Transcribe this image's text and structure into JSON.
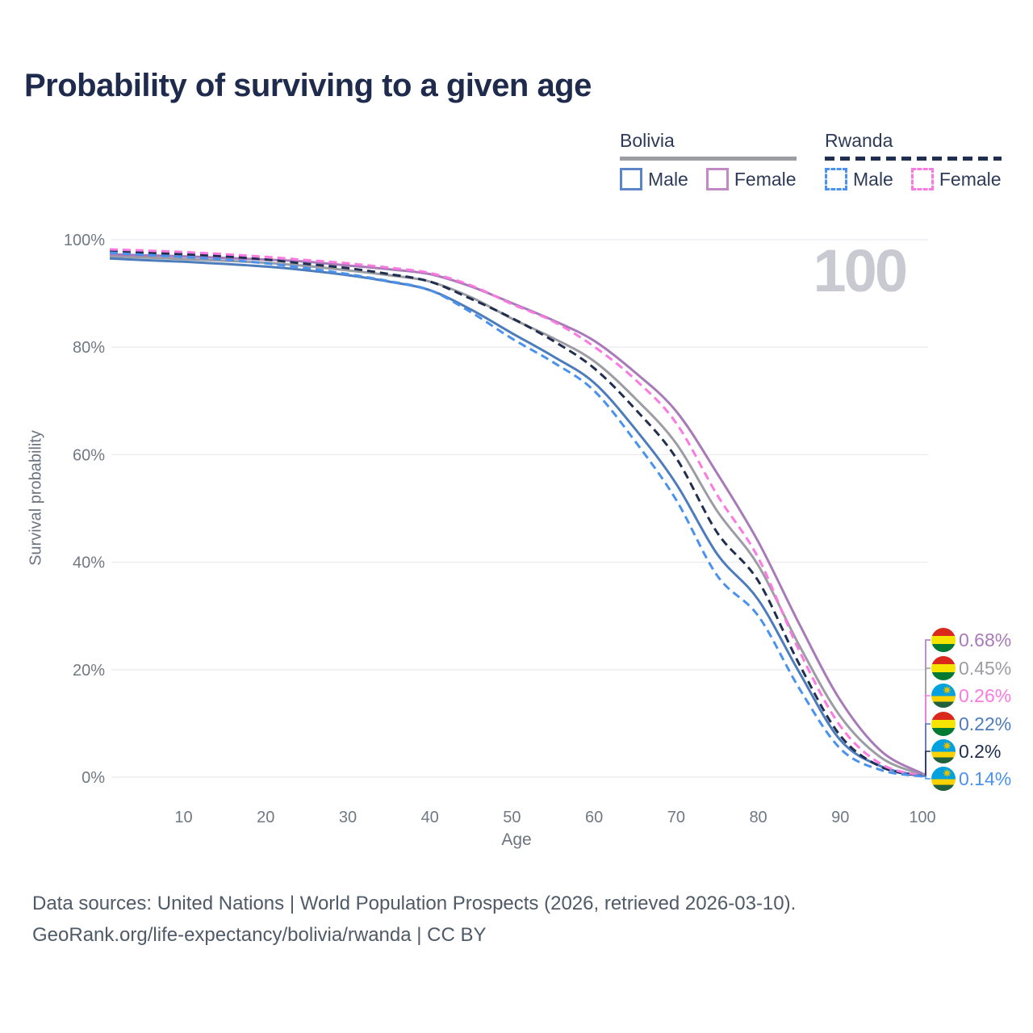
{
  "title": "Probability of surviving to a given age",
  "watermark_age": "100",
  "legend": {
    "groups": [
      {
        "label": "Bolivia",
        "style": "solid",
        "items": [
          {
            "label": "Male"
          },
          {
            "label": "Female"
          }
        ]
      },
      {
        "label": "Rwanda",
        "style": "dashed",
        "items": [
          {
            "label": "Male"
          },
          {
            "label": "Female"
          }
        ]
      }
    ]
  },
  "axis": {
    "y_title": "Survival probability",
    "x_title": "Age"
  },
  "footer": {
    "line1": "Data sources: United Nations | World Population Prospects (2026, retrieved 2026-03-10).",
    "line2": "GeoRank.org/life-expectancy/bolivia/rwanda | CC BY"
  },
  "colors": {
    "title": "#1e2b4d",
    "axis_text": "#6f7884",
    "grid": "#ebebf0",
    "watermark": "#c9c9d2",
    "bolivia_male": "#4d7cbc",
    "bolivia_female": "#a87ab8",
    "bolivia_both": "#9c9ca4",
    "rwanda_male": "#4a92ee",
    "rwanda_female": "#fb79e0",
    "rwanda_both": "#202f50"
  },
  "chart_data": {
    "type": "line",
    "title": "Probability of surviving to a given age",
    "xlabel": "Age",
    "ylabel": "Survival probability",
    "xlim": [
      1,
      100
    ],
    "ylim": [
      0,
      100
    ],
    "x_ticks": [
      10,
      20,
      30,
      40,
      50,
      60,
      70,
      80,
      90,
      100
    ],
    "y_ticks": [
      0,
      20,
      40,
      60,
      80,
      100
    ],
    "y_tick_format": "percent",
    "grid": "horizontal",
    "legend_position": "top-right",
    "highlighted_age": 100,
    "ages": [
      1,
      5,
      10,
      15,
      20,
      25,
      30,
      35,
      40,
      45,
      50,
      55,
      60,
      65,
      70,
      75,
      80,
      85,
      90,
      95,
      100
    ],
    "series": [
      {
        "name": "Bolivia Both sexes",
        "country": "Bolivia",
        "sex": "Both",
        "flag": "bolivia",
        "color": "#9c9ca4",
        "dashed": false,
        "end_label": "0.45%",
        "values": [
          96.9,
          96.7,
          96.4,
          96.1,
          95.7,
          95.1,
          94.3,
          93.4,
          92.2,
          89.3,
          85.3,
          81.7,
          77.4,
          70.5,
          62.1,
          49.5,
          39.4,
          24.5,
          11.3,
          3.6,
          0.45
        ]
      },
      {
        "name": "Bolivia Female",
        "country": "Bolivia",
        "sex": "Female",
        "flag": "bolivia",
        "color": "#a87ab8",
        "dashed": false,
        "end_label": "0.68%",
        "values": [
          97.3,
          97.1,
          96.9,
          96.6,
          96.3,
          95.9,
          95.2,
          94.5,
          93.6,
          91.3,
          88.2,
          85.0,
          81.2,
          75.3,
          68.1,
          56.5,
          43.8,
          28.5,
          14.3,
          4.8,
          0.68
        ]
      },
      {
        "name": "Bolivia Male",
        "country": "Bolivia",
        "sex": "Male",
        "flag": "bolivia",
        "color": "#4d7cbc",
        "dashed": false,
        "end_label": "0.22%",
        "values": [
          96.5,
          96.2,
          95.9,
          95.5,
          95.0,
          94.3,
          93.4,
          92.2,
          90.6,
          87.0,
          82.6,
          78.3,
          73.4,
          64.8,
          54.6,
          41.5,
          33.0,
          19.5,
          6.9,
          2.0,
          0.22
        ]
      },
      {
        "name": "Rwanda Both sexes",
        "country": "Rwanda",
        "sex": "Both",
        "flag": "rwanda",
        "color": "#202f50",
        "dashed": true,
        "end_label": "0.2%",
        "values": [
          97.9,
          97.6,
          97.3,
          96.9,
          96.3,
          95.5,
          94.7,
          93.6,
          92.2,
          89.0,
          85.4,
          81.2,
          76.1,
          68.5,
          59.4,
          45.5,
          36.5,
          21.0,
          7.7,
          1.9,
          0.2
        ]
      },
      {
        "name": "Rwanda Female",
        "country": "Rwanda",
        "sex": "Female",
        "flag": "rwanda",
        "color": "#fb79e0",
        "dashed": true,
        "end_label": "0.26%",
        "values": [
          98.2,
          98.0,
          97.7,
          97.3,
          96.8,
          96.2,
          95.6,
          94.8,
          93.8,
          91.5,
          88.0,
          84.8,
          80.1,
          74.0,
          65.9,
          52.5,
          40.8,
          23.5,
          9.5,
          2.4,
          0.26
        ]
      },
      {
        "name": "Rwanda Male",
        "country": "Rwanda",
        "sex": "Male",
        "flag": "rwanda",
        "color": "#4a92ee",
        "dashed": true,
        "end_label": "0.14%",
        "values": [
          97.6,
          97.2,
          96.8,
          96.3,
          95.6,
          94.7,
          93.6,
          92.3,
          90.6,
          86.5,
          81.6,
          77.2,
          71.9,
          62.5,
          51.6,
          37.5,
          30.0,
          16.5,
          5.3,
          1.3,
          0.14
        ]
      }
    ],
    "flag_colors": {
      "bolivia": {
        "red": "#da291c",
        "yellow": "#f4e400",
        "green": "#007a33"
      },
      "rwanda": {
        "blue": "#00a1de",
        "yellow": "#fad201",
        "green": "#20603d",
        "sun": "#e5be01"
      }
    }
  }
}
